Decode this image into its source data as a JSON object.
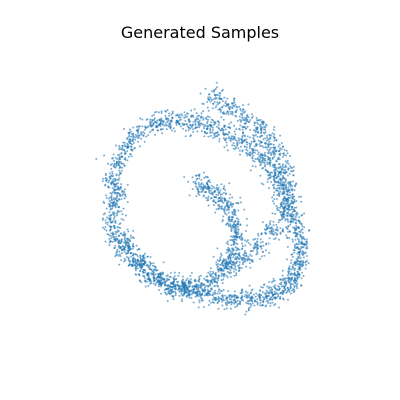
{
  "chart_data": {
    "type": "scatter",
    "title": "Generated Samples",
    "xlabel": "",
    "ylabel": "",
    "axes_visible": false,
    "grid": false,
    "legend": "none",
    "xlim": [
      -1.6,
      1.6
    ],
    "ylim": [
      -1.6,
      1.6
    ],
    "point_color": "#1f77b4",
    "point_alpha": 0.6,
    "series": [
      {
        "name": "",
        "description_shape": "spiral",
        "x": [
          -0.95,
          -0.9,
          -0.8,
          -0.7,
          -0.55,
          -0.4,
          -0.25,
          -0.1,
          0.05,
          0.2,
          0.35,
          0.5,
          0.6,
          0.7,
          0.78,
          0.85,
          0.9,
          0.95,
          0.98,
          0.98,
          0.95,
          0.9,
          0.82,
          0.72,
          0.6,
          0.45,
          0.3,
          0.15,
          0.0,
          -0.15,
          -0.3,
          -0.45,
          -0.6,
          -0.72,
          -0.82,
          -0.9,
          -0.95,
          -0.95,
          -0.9,
          -0.8,
          -0.65,
          -0.5,
          -0.35,
          -0.2,
          -0.05,
          0.1,
          0.2,
          0.28,
          0.32,
          0.3,
          0.25,
          0.15,
          0.05,
          -0.05,
          0.1,
          0.25,
          0.4,
          0.55,
          0.65,
          0.75,
          0.82,
          0.85,
          0.8,
          0.7,
          0.55,
          0.4,
          0.25
        ],
        "y": [
          0.3,
          0.5,
          0.65,
          0.78,
          0.88,
          0.92,
          0.92,
          0.9,
          0.85,
          0.8,
          0.72,
          0.62,
          0.5,
          0.38,
          0.25,
          0.1,
          -0.05,
          -0.2,
          -0.35,
          -0.5,
          -0.62,
          -0.72,
          -0.8,
          -0.86,
          -0.9,
          -0.92,
          -0.92,
          -0.9,
          -0.86,
          -0.82,
          -0.78,
          -0.72,
          -0.64,
          -0.54,
          -0.42,
          -0.28,
          -0.12,
          0.05,
          0.18,
          -0.35,
          -0.55,
          -0.7,
          -0.8,
          -0.82,
          -0.78,
          -0.7,
          -0.58,
          -0.44,
          -0.28,
          -0.12,
          0.02,
          0.12,
          0.2,
          0.25,
          1.15,
          1.05,
          0.95,
          0.85,
          0.72,
          0.58,
          0.4,
          0.2,
          0.0,
          -0.2,
          -0.38,
          -0.5,
          -0.58
        ]
      }
    ]
  }
}
